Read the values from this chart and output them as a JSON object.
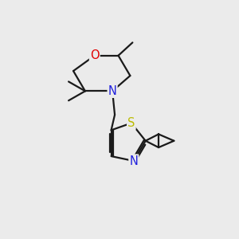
{
  "background_color": "#ebebeb",
  "bond_color": "#1a1a1a",
  "atom_colors": {
    "O": "#e00000",
    "N": "#2020dd",
    "S": "#bbbb00",
    "C": "#1a1a1a"
  },
  "bond_width": 1.6,
  "font_size_atoms": 10.5
}
